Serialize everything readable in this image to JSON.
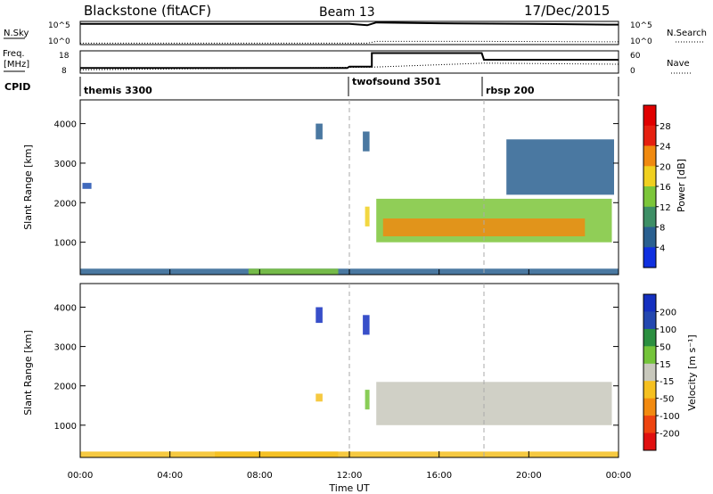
{
  "header": {
    "title": "Blackstone (fitACF)",
    "beam": "Beam 13",
    "date": "17/Dec/2015"
  },
  "nsky_panel": {
    "left_label": "N.Sky",
    "right_label": "N.Search",
    "left_ticks": [
      "10^5",
      "10^0"
    ],
    "right_ticks": [
      "10^5",
      "10^0"
    ]
  },
  "freq_panel": {
    "left_label_1": "Freq.",
    "left_label_2": "[MHz]",
    "right_label": "Nave",
    "left_ticks": [
      "18",
      "8"
    ],
    "right_ticks": [
      "60",
      "0"
    ]
  },
  "cpid_panel": {
    "label": "CPID",
    "modes": [
      {
        "name": "themis 3300",
        "start_hour": 0
      },
      {
        "name": "twofsound 3501",
        "start_hour": 12
      },
      {
        "name": "rbsp 200",
        "start_hour": 18
      }
    ]
  },
  "x_axis": {
    "label": "Time UT",
    "ticks": [
      "00:00",
      "04:00",
      "08:00",
      "12:00",
      "16:00",
      "20:00",
      "00:00"
    ]
  },
  "power_panel": {
    "ylabel": "Slant Range [km]",
    "yticks": [
      "1000",
      "2000",
      "3000",
      "4000"
    ],
    "colorbar_label": "Power [dB]",
    "colorbar_ticks": [
      "28",
      "24",
      "20",
      "16",
      "12",
      "8",
      "4"
    ]
  },
  "velocity_panel": {
    "ylabel": "Slant Range [km]",
    "yticks": [
      "1000",
      "2000",
      "3000",
      "4000"
    ],
    "colorbar_label": "Velocity [m s⁻¹]",
    "colorbar_ticks": [
      "200",
      "100",
      "50",
      "15",
      "-15",
      "-50",
      "-100",
      "-200"
    ]
  },
  "chart_data": [
    {
      "type": "line",
      "x_unit": "hours UT",
      "xlim": [
        0,
        24
      ],
      "series": [
        {
          "name": "N.Sky",
          "x": [
            0,
            2.7,
            4.9,
            10.5,
            12.0,
            12.8,
            13.2,
            16,
            20,
            23.5,
            24
          ],
          "values": [
            30000,
            30000,
            30000,
            30000,
            30000,
            15000,
            60000,
            40000,
            30000,
            20000,
            20000
          ]
        },
        {
          "name": "N.Search",
          "x": [
            0,
            12.8,
            13.2,
            18,
            24
          ],
          "values": [
            2,
            2,
            5,
            5,
            4
          ]
        }
      ],
      "ylim": [
        1,
        100000
      ],
      "yscale": "log"
    },
    {
      "type": "line",
      "x_unit": "hours UT",
      "xlim": [
        0,
        24
      ],
      "series": [
        {
          "name": "Freq.",
          "x": [
            0,
            11.9,
            12.0,
            13.0,
            13.0,
            17.9,
            18.0,
            24
          ],
          "values": [
            10.3,
            10.3,
            10.9,
            10.9,
            17.0,
            17.0,
            14.0,
            14.0
          ]
        },
        {
          "name": "Nave",
          "x": [
            0,
            13,
            18,
            24
          ],
          "values": [
            9,
            16,
            27,
            24
          ]
        }
      ],
      "ylim_freq": [
        8,
        18
      ],
      "ylim_nave": [
        0,
        60
      ]
    },
    {
      "type": "heatmap",
      "quantity": "Power [dB]",
      "xlim": [
        0,
        24
      ],
      "ylim": [
        180,
        4600
      ],
      "clim": [
        0,
        30
      ],
      "regions": [
        {
          "x0": 0,
          "x1": 24,
          "y0": 190,
          "y1": 330,
          "value": 9
        },
        {
          "x0": 7.5,
          "x1": 11.5,
          "y0": 190,
          "y1": 330,
          "value": 18
        },
        {
          "x0": 13.2,
          "x1": 23.7,
          "y0": 1000,
          "y1": 2100,
          "value": 18
        },
        {
          "x0": 13.5,
          "x1": 22.5,
          "y0": 1150,
          "y1": 1600,
          "value": 26
        },
        {
          "x0": 12.7,
          "x1": 12.9,
          "y0": 1400,
          "y1": 1900,
          "value": 20
        },
        {
          "x0": 10.5,
          "x1": 10.8,
          "y0": 3600,
          "y1": 4000,
          "value": 11
        },
        {
          "x0": 12.6,
          "x1": 12.9,
          "y0": 3300,
          "y1": 3800,
          "value": 11
        },
        {
          "x0": 0.1,
          "x1": 0.5,
          "y0": 2350,
          "y1": 2500,
          "value": 6
        },
        {
          "x0": 19.0,
          "x1": 23.8,
          "y0": 2200,
          "y1": 3600,
          "value": 8
        }
      ]
    },
    {
      "type": "heatmap",
      "quantity": "Velocity [m s⁻¹]",
      "xlim": [
        0,
        24
      ],
      "ylim": [
        180,
        4600
      ],
      "clim": [
        -250,
        250
      ],
      "regions": [
        {
          "x0": 0,
          "x1": 24,
          "y0": 190,
          "y1": 330,
          "value": -20
        },
        {
          "x0": 6.0,
          "x1": 11.5,
          "y0": 190,
          "y1": 330,
          "value": -45
        },
        {
          "x0": 13.2,
          "x1": 23.7,
          "y0": 1000,
          "y1": 2100,
          "value": 0
        },
        {
          "x0": 12.7,
          "x1": 12.9,
          "y0": 1400,
          "y1": 1900,
          "value": 30
        },
        {
          "x0": 10.5,
          "x1": 10.8,
          "y0": 3600,
          "y1": 4000,
          "value": 220
        },
        {
          "x0": 12.6,
          "x1": 12.9,
          "y0": 3300,
          "y1": 3800,
          "value": 220
        },
        {
          "x0": 10.5,
          "x1": 10.8,
          "y0": 1600,
          "y1": 1800,
          "value": -40
        }
      ]
    }
  ]
}
